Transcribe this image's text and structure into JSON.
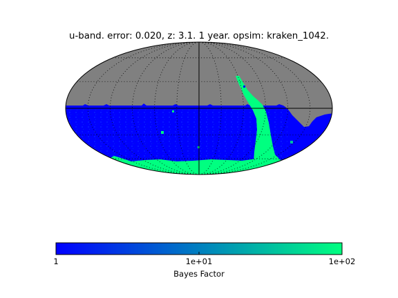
{
  "chart_data": {
    "type": "heatmap",
    "projection": "mollweide",
    "title": "u-band. error: 0.020, z: 3.1. 1 year. opsim: kraken_1042.",
    "grid": true,
    "masked_color": "#808080",
    "colormap": [
      "#0000ff",
      "#00ff80"
    ],
    "colorbar": {
      "orientation": "horizontal",
      "placement": "bottom",
      "scale": "log",
      "range": [
        1,
        100
      ],
      "label": "Bayes Factor",
      "ticks": [
        {
          "value": 1,
          "label": "1"
        },
        {
          "value": 10,
          "label": "1e+01"
        },
        {
          "value": 100,
          "label": "1e+02"
        }
      ]
    },
    "map_regions": {
      "surveyed_dec_range_deg": [
        -90,
        2
      ],
      "typical_value": 1.5,
      "high_value_features": [
        {
          "name": "galactic plane stripe",
          "value": 100
        },
        {
          "name": "southern polar band",
          "value": 100
        }
      ]
    }
  }
}
